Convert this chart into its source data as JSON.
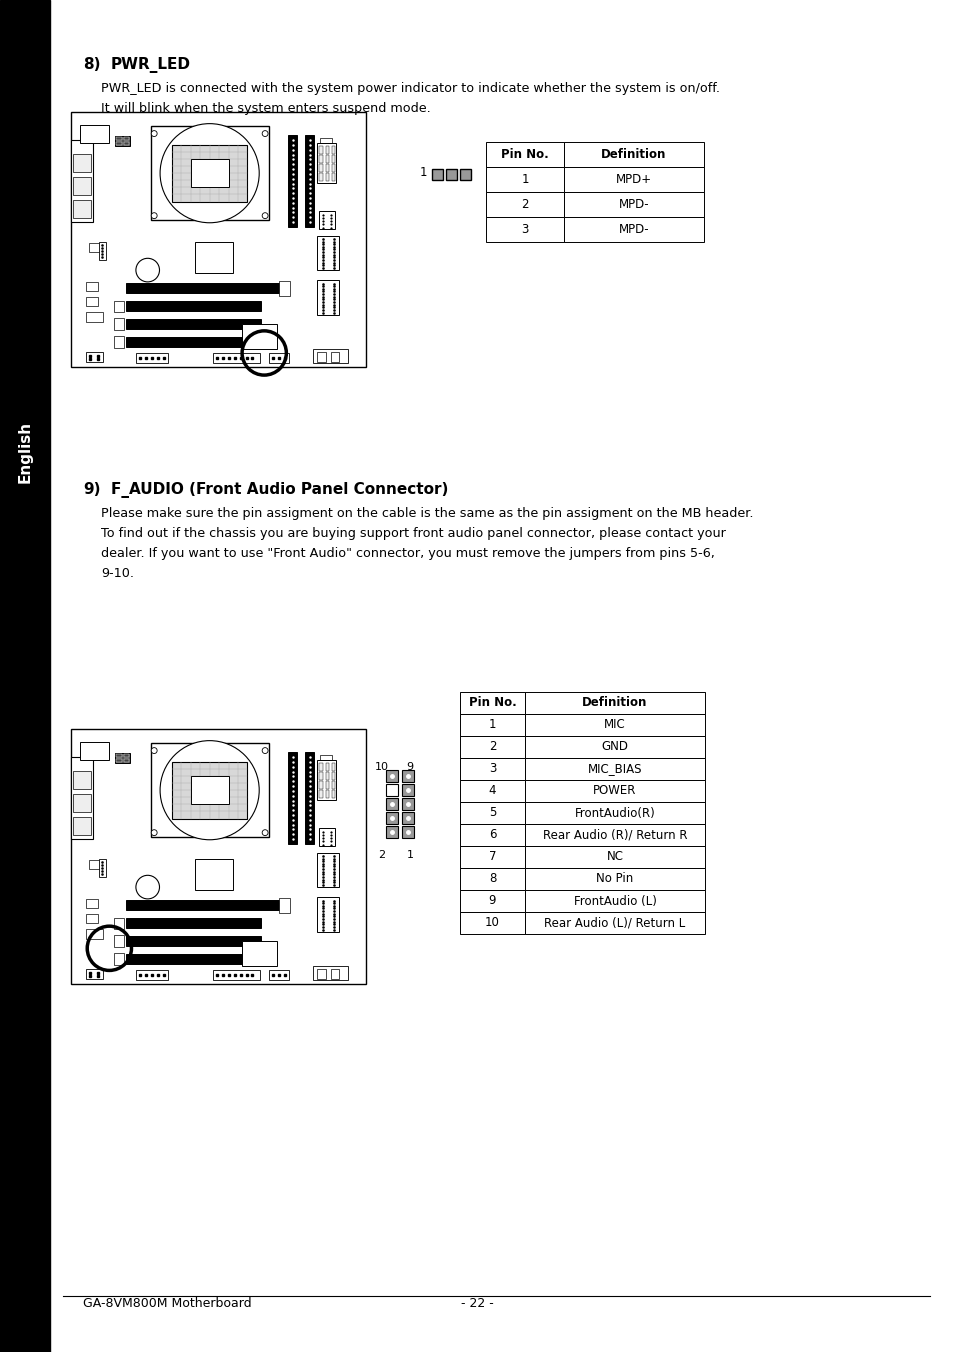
{
  "bg_color": "#ffffff",
  "sidebar_color": "#000000",
  "sidebar_text": "English",
  "section8_num": "8)",
  "section8_title": "PWR_LED",
  "section8_body1": "PWR_LED is connected with the system power indicator to indicate whether the system is on/off.",
  "section8_body2": "It will blink when the system enters suspend mode.",
  "table8_header": [
    "Pin No.",
    "Definition"
  ],
  "table8_rows": [
    [
      "1",
      "MPD+"
    ],
    [
      "2",
      "MPD-"
    ],
    [
      "3",
      "MPD-"
    ]
  ],
  "section9_num": "9)",
  "section9_title": "F_AUDIO (Front Audio Panel Connector)",
  "section9_body1": "Please make sure the pin assigment on the cable is the same as the pin assigment on the MB header.",
  "section9_body2": "To find out if the chassis you are buying support front audio panel connector, please contact your",
  "section9_body3": "dealer. If you want to use \"Front Audio\" connector, you must remove the jumpers from pins 5-6,",
  "section9_body4": "9-10.",
  "table9_header": [
    "Pin No.",
    "Definition"
  ],
  "table9_rows": [
    [
      "1",
      "MIC"
    ],
    [
      "2",
      "GND"
    ],
    [
      "3",
      "MIC_BIAS"
    ],
    [
      "4",
      "POWER"
    ],
    [
      "5",
      "FrontAudio(R)"
    ],
    [
      "6",
      "Rear Audio (R)/ Return R"
    ],
    [
      "7",
      "NC"
    ],
    [
      "8",
      "No Pin"
    ],
    [
      "9",
      "FrontAudio (L)"
    ],
    [
      "10",
      "Rear Audio (L)/ Return L"
    ]
  ],
  "footer_left": "GA-8VM800M Motherboard",
  "footer_center": "- 22 -",
  "font_family": "DejaVu Sans",
  "heading_fontsize": 11,
  "body_fontsize": 9.2,
  "table_fontsize": 8.5,
  "footer_fontsize": 9
}
